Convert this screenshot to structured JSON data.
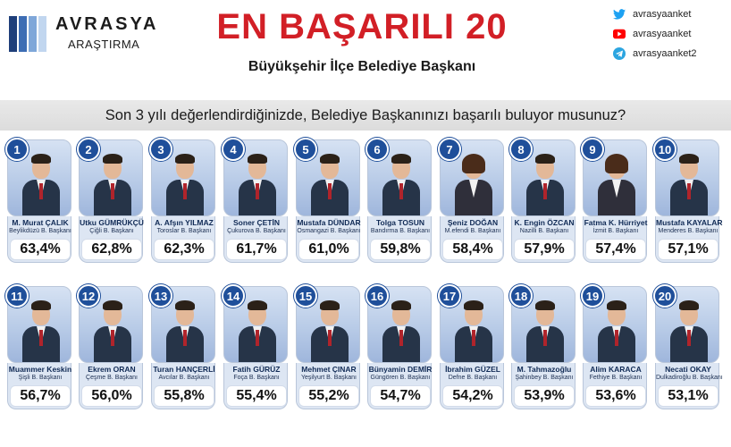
{
  "brand": {
    "name": "AVRASYA",
    "sub": "ARAŞTIRMA"
  },
  "title": "EN BAŞARILI 20",
  "subtitle": "Büyükşehir İlçe Belediye Başkanı",
  "social": [
    {
      "icon": "twitter-icon",
      "color": "#1da1f2",
      "handle": "avrasyaanket"
    },
    {
      "icon": "youtube-icon",
      "color": "#ff0000",
      "handle": "avrasyaanket"
    },
    {
      "icon": "telegram-icon",
      "color": "#2ca5e0",
      "handle": "avrasyaanket2"
    }
  ],
  "question": "Son 3 yılı değerlendirdiğinizde, Belediye Başkanınızı başarılı buluyor musunuz?",
  "colors": {
    "title_red": "#d21f26",
    "badge_blue": "#1f4f9a",
    "card_bg": "#dde6f3"
  },
  "mayors": [
    {
      "rank": "1",
      "name": "M. Murat ÇALIK",
      "office": "Beylikdüzü B. Başkanı",
      "pct": "63,4%"
    },
    {
      "rank": "2",
      "name": "Utku GÜMRÜKÇÜ",
      "office": "Çiğli B. Başkanı",
      "pct": "62,8%"
    },
    {
      "rank": "3",
      "name": "A. Afşın YILMAZ",
      "office": "Toroslar B. Başkanı",
      "pct": "62,3%"
    },
    {
      "rank": "4",
      "name": "Soner ÇETİN",
      "office": "Çukurova B. Başkanı",
      "pct": "61,7%"
    },
    {
      "rank": "5",
      "name": "Mustafa DÜNDAR",
      "office": "Osmangazi B. Başkanı",
      "pct": "61,0%"
    },
    {
      "rank": "6",
      "name": "Tolga TOSUN",
      "office": "Bandırma B. Başkanı",
      "pct": "59,8%"
    },
    {
      "rank": "7",
      "name": "Şeniz DOĞAN",
      "office": "M.efendi B. Başkanı",
      "pct": "58,4%"
    },
    {
      "rank": "8",
      "name": "K. Engin ÖZCAN",
      "office": "Nazilli B. Başkanı",
      "pct": "57,9%"
    },
    {
      "rank": "9",
      "name": "Fatma K. Hürriyet",
      "office": "İzmit B. Başkanı",
      "pct": "57,4%"
    },
    {
      "rank": "10",
      "name": "Mustafa KAYALAR",
      "office": "Menderes B. Başkanı",
      "pct": "57,1%"
    },
    {
      "rank": "11",
      "name": "Muammer Keskin",
      "office": "Şişli B. Başkanı",
      "pct": "56,7%"
    },
    {
      "rank": "12",
      "name": "Ekrem ORAN",
      "office": "Çeşme B. Başkanı",
      "pct": "56,0%"
    },
    {
      "rank": "13",
      "name": "Turan HANÇERLİ",
      "office": "Avcılar B. Başkanı",
      "pct": "55,8%"
    },
    {
      "rank": "14",
      "name": "Fatih GÜRÜZ",
      "office": "Foça B. Başkanı",
      "pct": "55,4%"
    },
    {
      "rank": "15",
      "name": "Mehmet ÇINAR",
      "office": "Yeşilyurt B. Başkanı",
      "pct": "55,2%"
    },
    {
      "rank": "16",
      "name": "Bünyamin DEMİR",
      "office": "Güngören B. Başkanı",
      "pct": "54,7%"
    },
    {
      "rank": "17",
      "name": "İbrahim GÜZEL",
      "office": "Defne B. Başkanı",
      "pct": "54,2%"
    },
    {
      "rank": "18",
      "name": "M. Tahmazoğlu",
      "office": "Şahinbey B. Başkanı",
      "pct": "53,9%"
    },
    {
      "rank": "19",
      "name": "Alim KARACA",
      "office": "Fethiye B. Başkanı",
      "pct": "53,6%"
    },
    {
      "rank": "20",
      "name": "Necati OKAY",
      "office": "Dulkadiroğlu B. Başkanı",
      "pct": "53,1%"
    }
  ]
}
